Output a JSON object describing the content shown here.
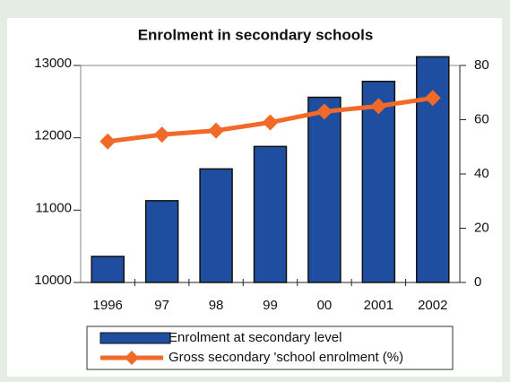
{
  "chart_data": {
    "type": "bar",
    "title": "Enrolment in secondary schools",
    "categories": [
      "1996",
      "97",
      "98",
      "99",
      "00",
      "2001",
      "2002"
    ],
    "series": [
      {
        "name": "Enrolment at secondary level",
        "type": "bar",
        "color": "#1f4ea0",
        "values": [
          10360,
          11130,
          11570,
          11880,
          12560,
          12780,
          13120
        ]
      },
      {
        "name": "Gross secondary 'school enrolment (%)",
        "type": "line",
        "axis": "y2",
        "color": "#f26a2a",
        "values": [
          52,
          54.5,
          56,
          59,
          63,
          65,
          68
        ]
      }
    ],
    "ylim": [
      10000,
      13000
    ],
    "yticks": [
      10000,
      11000,
      12000,
      13000
    ],
    "y2lim": [
      0,
      80
    ],
    "y2ticks": [
      0,
      20,
      40,
      60,
      80
    ]
  }
}
